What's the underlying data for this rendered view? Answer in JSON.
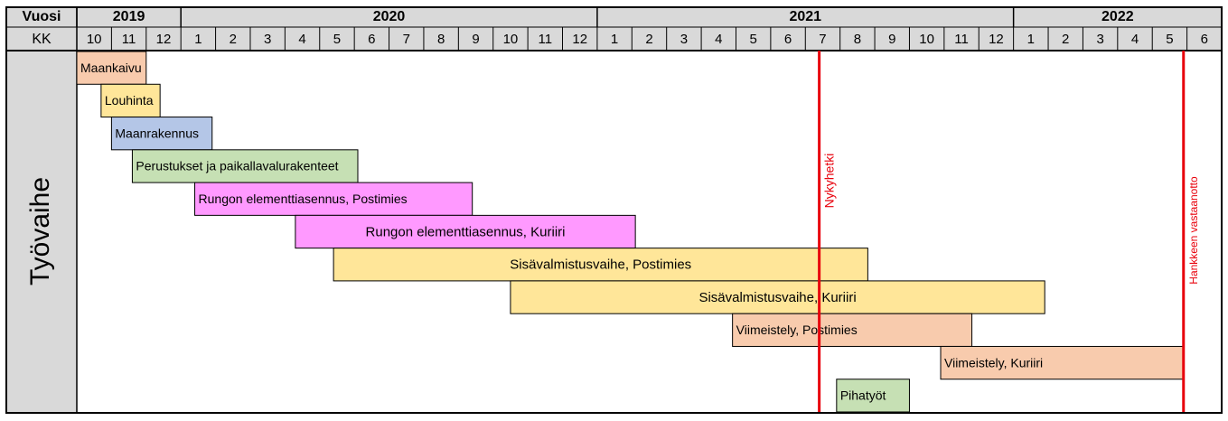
{
  "chart_data": {
    "type": "gantt",
    "year_header": "Vuosi",
    "month_header": "KK",
    "row_header": "Työvaihe",
    "xlim": [
      0,
      33
    ],
    "years": [
      {
        "label": "2019",
        "start": 0,
        "end": 3
      },
      {
        "label": "2020",
        "start": 3,
        "end": 15
      },
      {
        "label": "2021",
        "start": 15,
        "end": 27
      },
      {
        "label": "2022",
        "start": 27,
        "end": 33
      }
    ],
    "xticks": [
      {
        "value": 0.5,
        "label": "10"
      },
      {
        "value": 1.5,
        "label": "11"
      },
      {
        "value": 2.5,
        "label": "12"
      },
      {
        "value": 3.5,
        "label": "1"
      },
      {
        "value": 4.5,
        "label": "2"
      },
      {
        "value": 5.5,
        "label": "3"
      },
      {
        "value": 6.5,
        "label": "4"
      },
      {
        "value": 7.5,
        "label": "5"
      },
      {
        "value": 8.5,
        "label": "6"
      },
      {
        "value": 9.5,
        "label": "7"
      },
      {
        "value": 10.5,
        "label": "8"
      },
      {
        "value": 11.5,
        "label": "9"
      },
      {
        "value": 12.5,
        "label": "10"
      },
      {
        "value": 13.5,
        "label": "11"
      },
      {
        "value": 14.5,
        "label": "12"
      },
      {
        "value": 15.5,
        "label": "1"
      },
      {
        "value": 16.5,
        "label": "2"
      },
      {
        "value": 17.5,
        "label": "3"
      },
      {
        "value": 18.5,
        "label": "4"
      },
      {
        "value": 19.5,
        "label": "5"
      },
      {
        "value": 20.5,
        "label": "6"
      },
      {
        "value": 21.5,
        "label": "7"
      },
      {
        "value": 22.5,
        "label": "8"
      },
      {
        "value": 23.5,
        "label": "9"
      },
      {
        "value": 24.5,
        "label": "10"
      },
      {
        "value": 25.5,
        "label": "11"
      },
      {
        "value": 26.5,
        "label": "12"
      },
      {
        "value": 27.5,
        "label": "1"
      },
      {
        "value": 28.5,
        "label": "2"
      },
      {
        "value": 29.5,
        "label": "3"
      },
      {
        "value": 30.5,
        "label": "4"
      },
      {
        "value": 31.5,
        "label": "5"
      },
      {
        "value": 32.5,
        "label": "6"
      }
    ],
    "tasks": [
      {
        "name": "Maankaivu",
        "start": 0,
        "end": 2,
        "color": "#f8cbad"
      },
      {
        "name": "Louhinta",
        "start": 0.7,
        "end": 2.4,
        "color": "#ffe699"
      },
      {
        "name": "Maanrakennus",
        "start": 1,
        "end": 3.9,
        "color": "#b4c6e7"
      },
      {
        "name": "Perustukset ja paikallavalurakenteet",
        "start": 1.6,
        "end": 8.1,
        "color": "#c6e0b4"
      },
      {
        "name": "Rungon elementtiasennus, Postimies",
        "start": 3.4,
        "end": 11.4,
        "color": "#ff99ff"
      },
      {
        "name": "Rungon elementtiasennus, Kuriiri",
        "start": 6.3,
        "end": 16.1,
        "color": "#ff99ff"
      },
      {
        "name": "Sisävalmistusvaihe, Postimies",
        "start": 7.4,
        "end": 22.8,
        "color": "#ffe699"
      },
      {
        "name": "Sisävalmistusvaihe, Kuriiri",
        "start": 12.5,
        "end": 27.9,
        "color": "#ffe699"
      },
      {
        "name": "Viimeistely, Postimies",
        "start": 18.9,
        "end": 25.8,
        "color": "#f8cbad"
      },
      {
        "name": "Viimeistely, Kuriiri",
        "start": 24.9,
        "end": 31.9,
        "color": "#f8cbad"
      },
      {
        "name": "Pihatyöt",
        "start": 21.9,
        "end": 24,
        "color": "#c6e0b4"
      }
    ],
    "markers": [
      {
        "label": "Nykyhetki",
        "value": 21.4,
        "color": "#e8000b"
      },
      {
        "label": "Hankkeen vastaanotto",
        "value": 31.9,
        "color": "#e8000b"
      }
    ]
  }
}
